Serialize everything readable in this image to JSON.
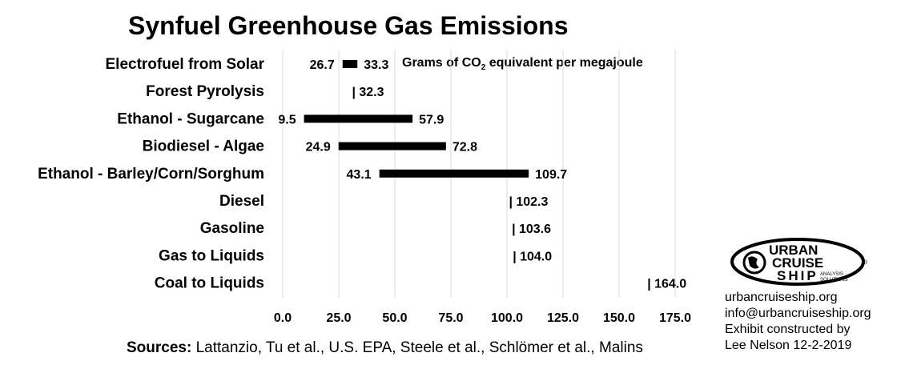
{
  "title": "Synfuel Greenhouse Gas Emissions",
  "unit_note": {
    "prefix": "Grams of CO",
    "sub": "2",
    "suffix": " equivalent per megajoule"
  },
  "sources": {
    "label": "Sources:",
    "text": " Lattanzio, Tu et al., U.S. EPA, Steele et al., Schlömer et al., Malins"
  },
  "contact": {
    "lines": [
      "urbancruiseship.org",
      "info@urbancruiseship.org",
      "Exhibit constructed by",
      "Lee Nelson 12-2-2019"
    ]
  },
  "logo": {
    "line1": "URBAN",
    "line2": "CRUISE",
    "line3": "SHIP",
    "tag1": "ANALYSIS",
    "tag2": "SOLUTIONS",
    "reg": "®"
  },
  "chart_data": {
    "type": "bar",
    "subtype": "floating-range",
    "categories": [
      "Electrofuel from Solar",
      "Forest Pyrolysis",
      "Ethanol - Sugarcane",
      "Biodiesel - Algae",
      "Ethanol - Barley/Corn/Sorghum",
      "Diesel",
      "Gasoline",
      "Gas to Liquids",
      "Coal to Liquids"
    ],
    "low": [
      26.7,
      32.3,
      9.5,
      24.9,
      43.1,
      102.3,
      103.6,
      104.0,
      164.0
    ],
    "high": [
      33.3,
      32.3,
      57.9,
      72.8,
      109.7,
      102.3,
      103.6,
      104.0,
      164.0
    ],
    "low_labels": [
      "26.7",
      "",
      "9.5",
      "24.9",
      "43.1",
      "",
      "",
      "",
      ""
    ],
    "high_labels": [
      "33.3",
      "| 32.3",
      "57.9",
      "72.8",
      "109.7",
      "| 102.3",
      "| 103.6",
      "| 104.0",
      "| 164.0"
    ],
    "xticks": [
      "0.0",
      "25.0",
      "50.0",
      "75.0",
      "100.0",
      "125.0",
      "150.0",
      "175.0"
    ],
    "xlim": [
      0,
      175
    ],
    "grid": "vertical",
    "bar_color": "#000000",
    "grid_color": "#d9d9d9"
  }
}
